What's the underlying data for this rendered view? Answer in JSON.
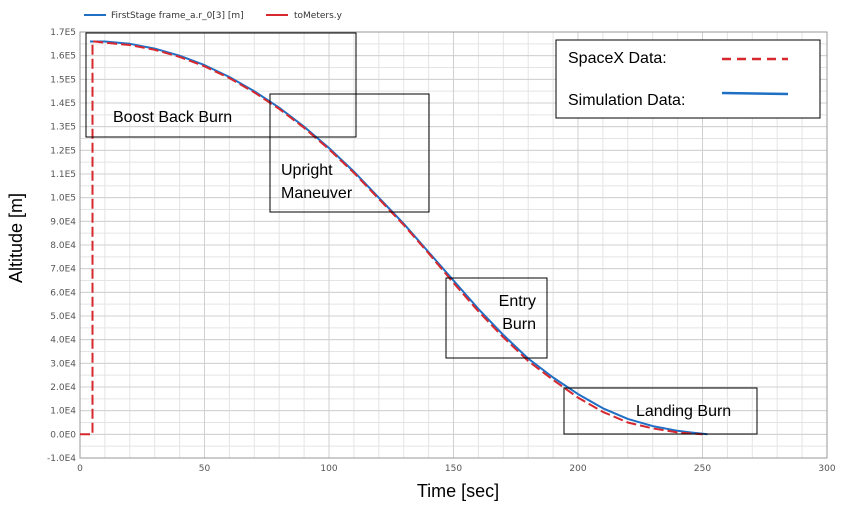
{
  "chart_data": {
    "type": "line",
    "xlabel": "Time [sec]",
    "ylabel": "Altitude [m]",
    "xlim": [
      0,
      300
    ],
    "ylim": [
      -10000,
      170000
    ],
    "grid": true,
    "x_ticks": [
      "0",
      "50",
      "100",
      "150",
      "200",
      "250",
      "300"
    ],
    "y_ticks": [
      "-1.0E4",
      "0.0E0",
      "1.0E4",
      "2.0E4",
      "3.0E4",
      "4.0E4",
      "5.0E4",
      "6.0E4",
      "7.0E4",
      "8.0E4",
      "9.0E4",
      "1.0E5",
      "1.1E5",
      "1.2E5",
      "1.3E5",
      "1.4E5",
      "1.5E5",
      "1.6E5",
      "1.7E5"
    ],
    "top_legend": [
      "FirstStage frame_a.r_0[3] [m]",
      "toMeters.y"
    ],
    "legend_position": "top-right",
    "legend_entries": [
      "SpaceX Data:",
      "Simulation Data:"
    ],
    "series": [
      {
        "name": "FirstStage frame_a.r_0[3] [m]",
        "color": "#1f6fc5",
        "style": "solid",
        "x": [
          4,
          10,
          20,
          30,
          40,
          50,
          60,
          70,
          80,
          90,
          100,
          110,
          120,
          130,
          140,
          150,
          160,
          170,
          180,
          190,
          200,
          210,
          220,
          230,
          240,
          245,
          252
        ],
        "y": [
          166000,
          166000,
          165000,
          163000,
          160000,
          156000,
          151000,
          145000,
          138000,
          130000,
          121000,
          111000,
          100000,
          89000,
          77000,
          65000,
          53000,
          42000,
          32000,
          24000,
          17000,
          11000,
          6500,
          3500,
          1500,
          800,
          0
        ]
      },
      {
        "name": "toMeters.y",
        "color": "#d6282e",
        "style": "dashed",
        "x": [
          0,
          5,
          5,
          6,
          10,
          20,
          30,
          40,
          50,
          60,
          70,
          80,
          90,
          100,
          110,
          120,
          130,
          140,
          150,
          160,
          170,
          180,
          190,
          200,
          210,
          220,
          230,
          240,
          250
        ],
        "y": [
          0,
          0,
          166000,
          166000,
          165500,
          164500,
          162500,
          159500,
          155500,
          150500,
          144500,
          137500,
          129500,
          120500,
          110500,
          99500,
          88500,
          76500,
          64000,
          52000,
          41000,
          31000,
          23000,
          15500,
          9500,
          5000,
          2500,
          800,
          0
        ]
      }
    ],
    "annotations": [
      {
        "label": "Boost Back Burn"
      },
      {
        "label": "Upright Maneuver"
      },
      {
        "label": "Entry Burn"
      },
      {
        "label": "Landing Burn"
      }
    ]
  }
}
